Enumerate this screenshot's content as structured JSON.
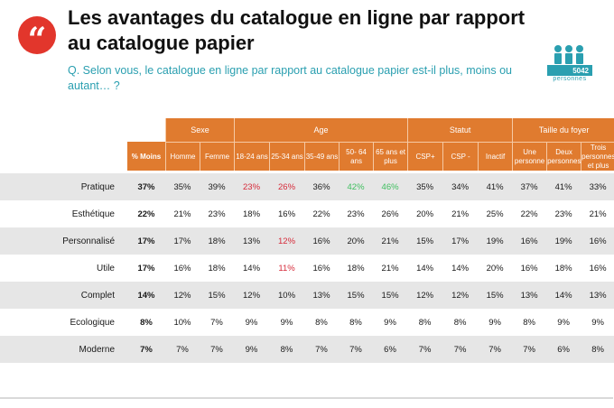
{
  "header": {
    "title": "Les avantages du catalogue en ligne par rapport au catalogue papier",
    "question": "Q. Selon vous, le catalogue en ligne par rapport au catalogue papier est-il plus, moins ou autant… ?",
    "sample_count": "5042",
    "sample_label": "personnes",
    "quote_icon": "quote-mark-icon",
    "people_icon": "people-group-icon"
  },
  "colors": {
    "header_orange": "#e07b2f",
    "accent_red": "#e2362c",
    "teal": "#2a9fb0",
    "highlight_red": "#d62b3a",
    "highlight_green": "#3fbf5f"
  },
  "table": {
    "groups": [
      "Sexe",
      "Age",
      "Statut",
      "Taille du foyer"
    ],
    "total_label": "% Moins",
    "columns": [
      "Homme",
      "Femme",
      "18-24 ans",
      "25-34 ans",
      "35-49 ans",
      "50- 64 ans",
      "65 ans et plus",
      "CSP+",
      "CSP -",
      "Inactif",
      "Une personne",
      "Deux personnes",
      "Trois personnes et plus"
    ],
    "rows": [
      {
        "label": "Pratique",
        "total": "37%",
        "values": [
          "35%",
          "39%",
          "23%",
          "26%",
          "36%",
          "42%",
          "46%",
          "35%",
          "34%",
          "41%",
          "37%",
          "41%",
          "33%"
        ],
        "colors": [
          "",
          "",
          "red",
          "red",
          "",
          "green",
          "green",
          "",
          "",
          "",
          "",
          "",
          ""
        ]
      },
      {
        "label": "Esthétique",
        "total": "22%",
        "values": [
          "21%",
          "23%",
          "18%",
          "16%",
          "22%",
          "23%",
          "26%",
          "20%",
          "21%",
          "25%",
          "22%",
          "23%",
          "21%"
        ],
        "colors": [
          "",
          "",
          "",
          "",
          "",
          "",
          "",
          "",
          "",
          "",
          "",
          "",
          ""
        ]
      },
      {
        "label": "Personnalisé",
        "total": "17%",
        "values": [
          "17%",
          "18%",
          "13%",
          "12%",
          "16%",
          "20%",
          "21%",
          "15%",
          "17%",
          "19%",
          "16%",
          "19%",
          "16%"
        ],
        "colors": [
          "",
          "",
          "",
          "red",
          "",
          "",
          "",
          "",
          "",
          "",
          "",
          "",
          ""
        ]
      },
      {
        "label": "Utile",
        "total": "17%",
        "values": [
          "16%",
          "18%",
          "14%",
          "11%",
          "16%",
          "18%",
          "21%",
          "14%",
          "14%",
          "20%",
          "16%",
          "18%",
          "16%"
        ],
        "colors": [
          "",
          "",
          "",
          "red",
          "",
          "",
          "",
          "",
          "",
          "",
          "",
          "",
          ""
        ]
      },
      {
        "label": "Complet",
        "total": "14%",
        "values": [
          "12%",
          "15%",
          "12%",
          "10%",
          "13%",
          "15%",
          "15%",
          "12%",
          "12%",
          "15%",
          "13%",
          "14%",
          "13%"
        ],
        "colors": [
          "",
          "",
          "",
          "",
          "",
          "",
          "",
          "",
          "",
          "",
          "",
          "",
          ""
        ]
      },
      {
        "label": "Ecologique",
        "total": "8%",
        "values": [
          "10%",
          "7%",
          "9%",
          "9%",
          "8%",
          "8%",
          "9%",
          "8%",
          "8%",
          "9%",
          "8%",
          "9%",
          "9%"
        ],
        "colors": [
          "",
          "",
          "",
          "",
          "",
          "",
          "",
          "",
          "",
          "",
          "",
          "",
          ""
        ]
      },
      {
        "label": "Moderne",
        "total": "7%",
        "values": [
          "7%",
          "7%",
          "9%",
          "8%",
          "7%",
          "7%",
          "6%",
          "7%",
          "7%",
          "7%",
          "7%",
          "6%",
          "8%"
        ],
        "colors": [
          "",
          "",
          "",
          "",
          "",
          "",
          "",
          "",
          "",
          "",
          "",
          "",
          ""
        ]
      }
    ]
  }
}
